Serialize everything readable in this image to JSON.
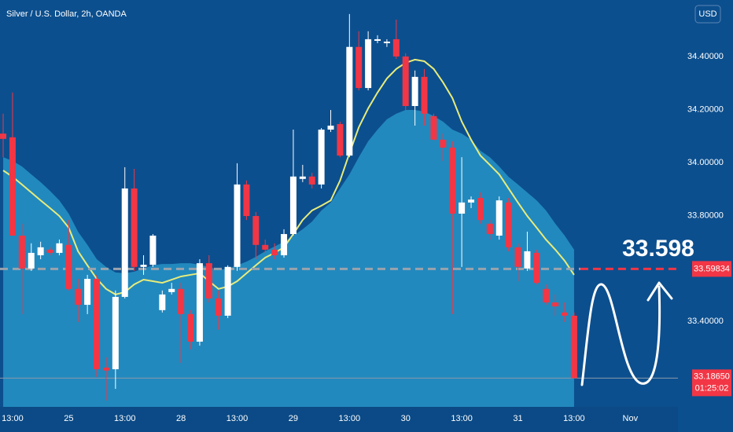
{
  "chart_data": {
    "type": "candlestick",
    "title": "Silver / U.S. Dollar, 2h, OANDA",
    "currency": "USD",
    "annotation": "33.598",
    "up_color": "#ffffff",
    "down_color": "#f23645",
    "xlim": [
      -0.34,
      72.1
    ],
    "xticks": [
      {
        "value": 1,
        "label": "13:00"
      },
      {
        "value": 7,
        "label": "25"
      },
      {
        "value": 13,
        "label": "13:00"
      },
      {
        "value": 19,
        "label": "28"
      },
      {
        "value": 25,
        "label": "13:00"
      },
      {
        "value": 31,
        "label": "29"
      },
      {
        "value": 37,
        "label": "13:00"
      },
      {
        "value": 43,
        "label": "30"
      },
      {
        "value": 49,
        "label": "13:00"
      },
      {
        "value": 55,
        "label": "31"
      },
      {
        "value": 61,
        "label": "13:00"
      },
      {
        "value": 67,
        "label": "Nov"
      }
    ],
    "ylim": [
      33.078,
      34.613
    ],
    "yticks": [
      {
        "value": 34.4,
        "label": "34.40000"
      },
      {
        "value": 34.2,
        "label": "34.20000"
      },
      {
        "value": 34.0,
        "label": "34.00000"
      },
      {
        "value": 33.8,
        "label": "33.80000"
      },
      {
        "value": 33.4,
        "label": "33.40000"
      }
    ],
    "price_line": {
      "value": 33.59834,
      "color": "#f23645"
    },
    "last_price": {
      "value": 33.1865,
      "label": "33.18650",
      "countdown": "01:25:02",
      "color": "#f23645"
    },
    "open": [
      34.109,
      34.095,
      33.724,
      33.6,
      33.65,
      33.671,
      33.659,
      33.689,
      33.523,
      33.463,
      33.561,
      33.226,
      33.22,
      33.493,
      33.902,
      33.606,
      33.614,
      33.443,
      33.511,
      33.523,
      33.428,
      33.324,
      33.62,
      33.487,
      33.422,
      33.606,
      33.917,
      33.798,
      33.689,
      33.671,
      33.65,
      33.73,
      33.938,
      33.947,
      33.917,
      34.124,
      34.145,
      34.026,
      34.436,
      34.281,
      34.459,
      34.45,
      34.465,
      34.4,
      34.213,
      34.323,
      34.175,
      34.086,
      34.056,
      33.807,
      33.849,
      33.866,
      33.769,
      33.724,
      33.849,
      33.68,
      33.6,
      33.659,
      33.523,
      33.472,
      33.434,
      33.422
    ],
    "high": [
      34.184,
      34.264,
      33.769,
      33.695,
      33.701,
      33.68,
      33.709,
      33.783,
      33.561,
      33.576,
      33.576,
      33.265,
      33.517,
      33.982,
      33.976,
      33.65,
      33.73,
      33.517,
      33.546,
      33.546,
      33.443,
      33.635,
      33.65,
      33.517,
      33.612,
      33.997,
      33.932,
      33.813,
      33.709,
      33.695,
      33.748,
      34.124,
      33.991,
      33.961,
      34.13,
      34.198,
      34.154,
      34.56,
      34.495,
      34.495,
      34.48,
      34.465,
      34.539,
      34.412,
      34.347,
      34.353,
      34.184,
      34.109,
      34.08,
      34.02,
      33.872,
      33.887,
      33.783,
      33.872,
      33.866,
      33.695,
      33.739,
      33.671,
      33.54,
      33.502,
      33.472,
      33.434
    ],
    "low": [
      34.02,
      33.724,
      33.428,
      33.591,
      33.635,
      33.65,
      33.65,
      33.517,
      33.398,
      33.428,
      33.191,
      33.102,
      33.146,
      33.487,
      33.591,
      33.576,
      33.606,
      33.434,
      33.502,
      33.244,
      33.295,
      33.309,
      33.472,
      33.369,
      33.413,
      33.591,
      33.783,
      33.635,
      33.659,
      33.635,
      33.641,
      33.724,
      33.926,
      33.902,
      33.902,
      34.115,
      34.02,
      34.02,
      34.272,
      34.272,
      34.45,
      34.436,
      34.391,
      34.198,
      34.139,
      34.139,
      34.08,
      34.006,
      33.428,
      33.606,
      33.828,
      33.769,
      33.709,
      33.709,
      33.665,
      33.552,
      33.591,
      33.54,
      33.463,
      33.422,
      33.398,
      33.185
    ],
    "close": [
      34.089,
      33.724,
      33.6,
      33.659,
      33.68,
      33.659,
      33.695,
      33.523,
      33.463,
      33.561,
      33.22,
      33.215,
      33.493,
      33.902,
      33.606,
      33.614,
      33.724,
      33.502,
      33.523,
      33.428,
      33.324,
      33.62,
      33.487,
      33.422,
      33.606,
      33.917,
      33.798,
      33.689,
      33.671,
      33.65,
      33.73,
      33.947,
      33.947,
      33.917,
      34.124,
      34.139,
      34.026,
      34.436,
      34.281,
      34.465,
      34.465,
      34.456,
      34.4,
      34.213,
      34.323,
      34.184,
      34.086,
      34.056,
      33.807,
      33.849,
      33.86,
      33.783,
      33.73,
      33.857,
      33.68,
      33.606,
      33.665,
      33.546,
      33.472,
      33.457,
      33.422,
      33.1865
    ],
    "lines": [
      {
        "color": "#2a9ccd",
        "fill": true,
        "values": [
          34.02,
          34.006,
          33.985,
          33.955,
          33.926,
          33.893,
          33.857,
          33.807,
          33.739,
          33.689,
          33.635,
          33.606,
          33.585,
          33.582,
          33.588,
          33.6,
          33.612,
          33.617,
          33.617,
          33.62,
          33.62,
          33.614,
          33.606,
          33.594,
          33.6,
          33.612,
          33.626,
          33.644,
          33.665,
          33.683,
          33.701,
          33.724,
          33.748,
          33.777,
          33.819,
          33.849,
          33.902,
          33.955,
          34.02,
          34.08,
          34.124,
          34.163,
          34.184,
          34.198,
          34.198,
          34.192,
          34.175,
          34.154,
          34.124,
          34.109,
          34.086,
          34.044,
          34.02,
          33.985,
          33.946,
          33.917,
          33.887,
          33.857,
          33.819,
          33.769,
          33.724,
          33.671
        ]
      },
      {
        "color": "#e8ec7a",
        "fill": false,
        "values": [
          33.97,
          33.946,
          33.917,
          33.887,
          33.857,
          33.828,
          33.798,
          33.754,
          33.665,
          33.612,
          33.561,
          33.523,
          33.502,
          33.511,
          33.54,
          33.558,
          33.552,
          33.546,
          33.558,
          33.57,
          33.576,
          33.582,
          33.552,
          33.523,
          33.532,
          33.552,
          33.582,
          33.612,
          33.641,
          33.659,
          33.68,
          33.73,
          33.783,
          33.819,
          33.837,
          33.857,
          33.932,
          34.035,
          34.133,
          34.204,
          34.264,
          34.317,
          34.353,
          34.376,
          34.388,
          34.382,
          34.353,
          34.302,
          34.243,
          34.154,
          34.086,
          34.026,
          33.991,
          33.955,
          33.902,
          33.849,
          33.798,
          33.754,
          33.709,
          33.671,
          33.629,
          33.576
        ]
      }
    ]
  }
}
